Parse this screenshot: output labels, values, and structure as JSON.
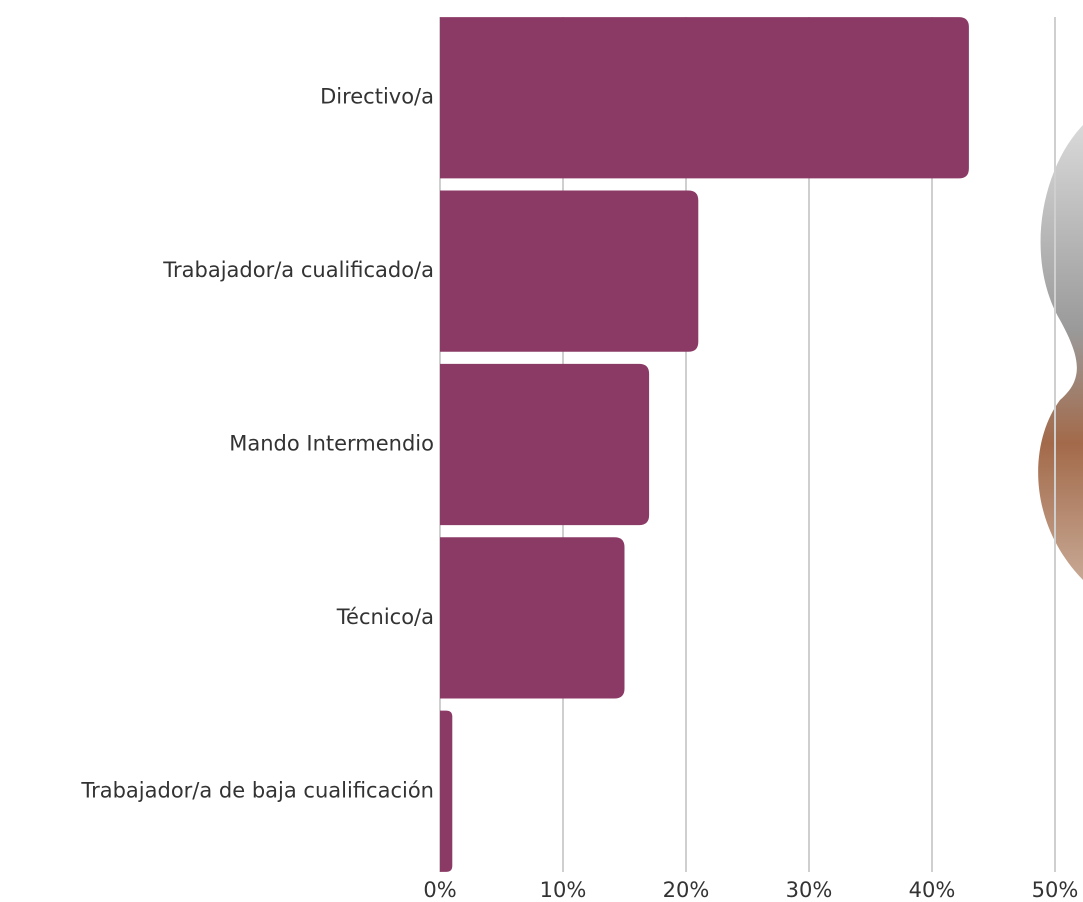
{
  "chart_data": {
    "type": "barh",
    "categories": [
      "Directivo/a",
      "Trabajador/a cualificado/a",
      "Mando Intermendio",
      "Técnico/a",
      "Trabajador/a de baja cualificación"
    ],
    "values": [
      43,
      21,
      17,
      15,
      1
    ],
    "color": "#8b3a66",
    "xlim": [
      0,
      50
    ],
    "xticks": [
      {
        "value": 0,
        "label": "0%"
      },
      {
        "value": 10,
        "label": "10%"
      },
      {
        "value": 20,
        "label": "20%"
      },
      {
        "value": 30,
        "label": "30%"
      },
      {
        "value": 40,
        "label": "40%"
      },
      {
        "value": 50,
        "label": "50%"
      }
    ],
    "grid": true
  }
}
